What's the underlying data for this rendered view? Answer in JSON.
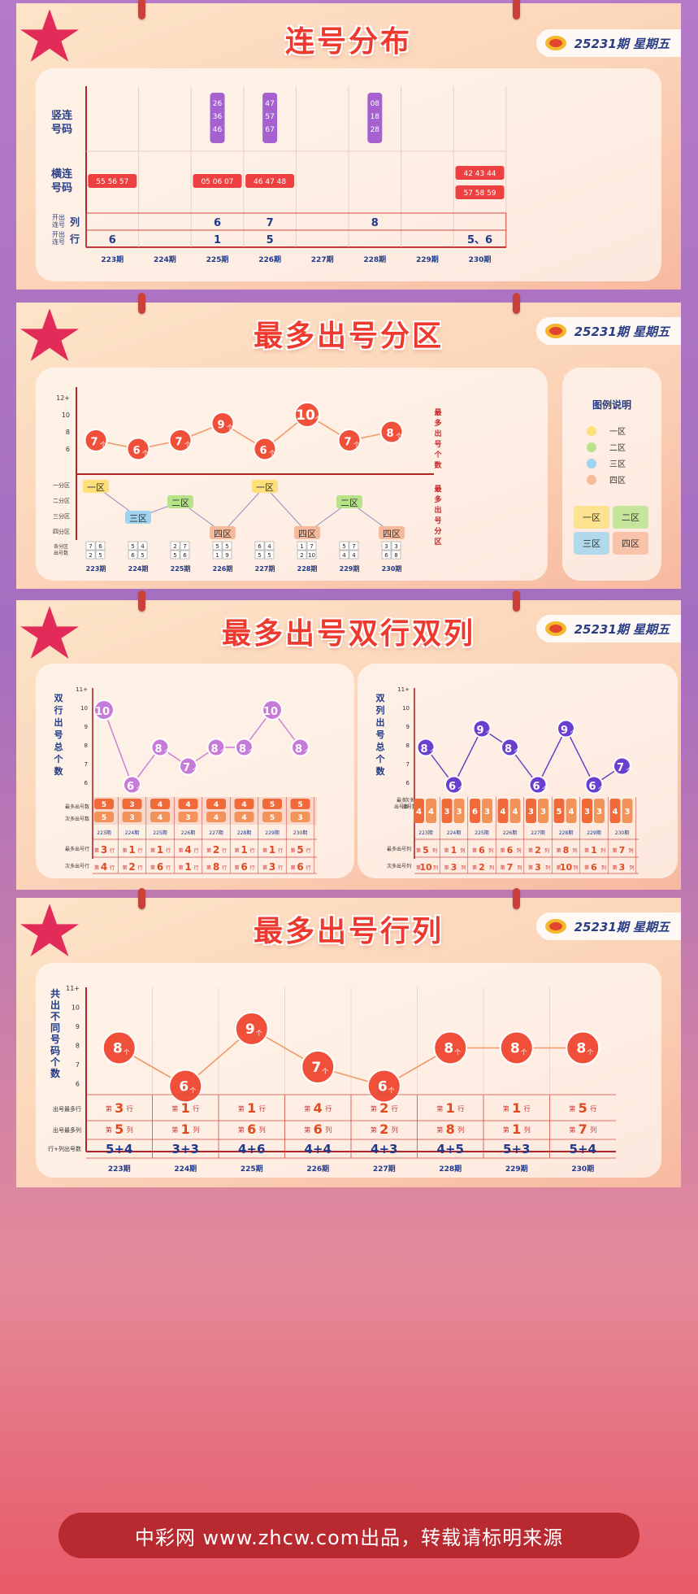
{
  "issue_label": "25231期 星期五",
  "footer": "中彩网 www.zhcw.com出品，转载请标明来源",
  "periods": [
    "223期",
    "224期",
    "225期",
    "226期",
    "227期",
    "228期",
    "229期",
    "230期"
  ],
  "periods_short": [
    "223期",
    "224期",
    "225期",
    "226期",
    "227期",
    "228期",
    "229期",
    "230期"
  ],
  "colors": {
    "red": "#ee4040",
    "purple": "#a461cf",
    "navy": "#1f3a8a",
    "orange": "#f26a3d",
    "blue_line": "#5a3fc0"
  },
  "chart_data": [
    {
      "type": "table",
      "title": "连号分布",
      "row_labels": {
        "vertical": [
          "竖连",
          "号码"
        ],
        "horizontal": [
          "横连",
          "号码"
        ],
        "col_count": [
          "开出",
          "连号",
          "列"
        ],
        "row_count": [
          "开出",
          "连号",
          "行"
        ]
      },
      "vertical_consecutive": [
        [],
        [],
        [
          "26",
          "36",
          "46"
        ],
        [
          "47",
          "57",
          "67"
        ],
        [],
        [
          "08",
          "18",
          "28"
        ],
        [],
        []
      ],
      "horizontal_consecutive": [
        [
          "55 56 57"
        ],
        [],
        [
          "05 06 07"
        ],
        [
          "46 47 48"
        ],
        [],
        [],
        [],
        [
          "42 43 44",
          "57 58 59"
        ]
      ],
      "consecutive_columns": [
        "",
        "",
        "6",
        "7",
        "",
        "8",
        "",
        ""
      ],
      "consecutive_rows": [
        "6",
        "",
        "1",
        "5",
        "",
        "",
        "",
        "5、6"
      ]
    },
    {
      "type": "line",
      "title": "最多出号分区",
      "y_ticks": [
        "12+",
        "10",
        "8",
        "6"
      ],
      "y_axis_label": [
        "最",
        "多",
        "出",
        "号",
        "个",
        "数"
      ],
      "values": [
        7,
        6,
        7,
        9,
        6,
        10,
        7,
        8
      ],
      "point_suffix": "个",
      "zone_axis": [
        "一分区",
        "二分区",
        "三分区",
        "四分区"
      ],
      "zone_axis_label": [
        "最",
        "多",
        "出",
        "号",
        "分",
        "区"
      ],
      "zones": [
        "一区",
        "三区",
        "二区",
        "四区",
        "一区",
        "四区",
        "二区",
        "四区"
      ],
      "zone_counts_label": [
        "各分区",
        "出号数"
      ],
      "zone_counts": [
        [
          "7",
          "6",
          "2",
          "5"
        ],
        [
          "5",
          "4",
          "6",
          "5"
        ],
        [
          "2",
          "7",
          "5",
          "6"
        ],
        [
          "5",
          "5",
          "1",
          "9"
        ],
        [
          "6",
          "4",
          "5",
          "5"
        ],
        [
          "1",
          "7",
          "2",
          "10"
        ],
        [
          "5",
          "7",
          "4",
          "4"
        ],
        [
          "3",
          "3",
          "6",
          "8"
        ]
      ],
      "legend_title": "图例说明",
      "legend": [
        {
          "name": "一区",
          "color": "#fde07a"
        },
        {
          "name": "二区",
          "color": "#b6e38a"
        },
        {
          "name": "三区",
          "color": "#9fd3ef"
        },
        {
          "name": "四区",
          "color": "#f6b99a"
        }
      ]
    },
    {
      "type": "line",
      "title": "最多出号双行双列",
      "y_ticks": [
        "11+",
        "10",
        "9",
        "8",
        "7",
        "6"
      ],
      "y_axis_label": [
        "双",
        "行",
        "出",
        "号",
        "总",
        "个",
        "数"
      ],
      "values": [
        10,
        6,
        8,
        7,
        8,
        8,
        10,
        8
      ],
      "point_suffix": "个",
      "row1_label": "最多出号数",
      "row2_label": "次多出号数",
      "row1": [
        "5",
        "3",
        "4",
        "4",
        "4",
        "4",
        "5",
        "5"
      ],
      "row2": [
        "5",
        "3",
        "4",
        "3",
        "4",
        "4",
        "5",
        "3"
      ],
      "row3_label": "最多出号行",
      "row4_label": "次多出号行",
      "row3": [
        "3",
        "1",
        "1",
        "4",
        "2",
        "1",
        "1",
        "5"
      ],
      "row4": [
        "4",
        "2",
        "6",
        "1",
        "8",
        "6",
        "3",
        "6"
      ],
      "row_prefix": "第",
      "row_suffix": "行"
    },
    {
      "type": "line",
      "title": "最多出号双行双列",
      "y_ticks": [
        "11+",
        "10",
        "9",
        "8",
        "7",
        "6"
      ],
      "y_axis_label": [
        "双",
        "列",
        "出",
        "号",
        "总",
        "个",
        "数"
      ],
      "values": [
        8,
        6,
        9,
        8,
        6,
        9,
        6,
        7
      ],
      "point_suffix": "个",
      "side_label": [
        "最多出号数",
        "次多出号数"
      ],
      "pairs": [
        [
          "4",
          "4"
        ],
        [
          "3",
          "3"
        ],
        [
          "6",
          "3"
        ],
        [
          "4",
          "4"
        ],
        [
          "3",
          "3"
        ],
        [
          "5",
          "4"
        ],
        [
          "3",
          "3"
        ],
        [
          "4",
          "3"
        ]
      ],
      "row3_label": "最多出号列",
      "row4_label": "次多出号列",
      "row3": [
        "5",
        "1",
        "6",
        "6",
        "2",
        "8",
        "1",
        "7"
      ],
      "row4": [
        "10",
        "3",
        "2",
        "7",
        "3",
        "10",
        "6",
        "3"
      ],
      "row_prefix": "第",
      "row_suffix": "列"
    },
    {
      "type": "line",
      "title": "最多出号行列",
      "y_ticks": [
        "11+",
        "10",
        "9",
        "8",
        "7",
        "6"
      ],
      "y_axis_label": [
        "共",
        "出",
        "不",
        "同",
        "号",
        "码",
        "个",
        "数"
      ],
      "values": [
        8,
        6,
        9,
        7,
        6,
        8,
        8,
        8
      ],
      "point_suffix": "个",
      "row1_label": "出号最多行",
      "row2_label": "出号最多列",
      "row3_label": "行+列出号数",
      "row1": [
        "3",
        "1",
        "1",
        "4",
        "2",
        "1",
        "1",
        "5"
      ],
      "row2": [
        "5",
        "1",
        "6",
        "6",
        "2",
        "8",
        "1",
        "7"
      ],
      "row3": [
        "5+4",
        "3+3",
        "4+6",
        "4+4",
        "4+3",
        "4+5",
        "5+3",
        "5+4"
      ],
      "row_prefix": "第",
      "row1_suffix": "行",
      "row2_suffix": "列"
    }
  ]
}
